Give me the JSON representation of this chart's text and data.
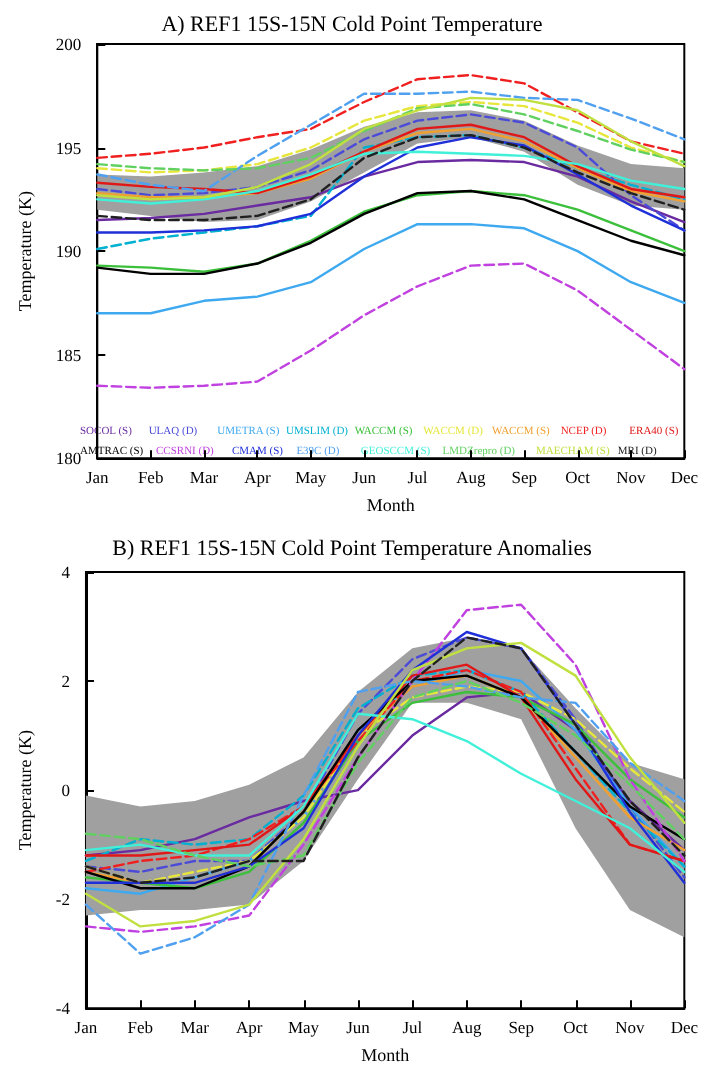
{
  "chart_data": [
    {
      "type": "line",
      "title": "A) REF1 15S-15N Cold Point Temperature",
      "xlabel": "Month",
      "ylabel": "Temperature (K)",
      "categories": [
        "Jan",
        "Feb",
        "Mar",
        "Apr",
        "May",
        "Jun",
        "Jul",
        "Aug",
        "Sep",
        "Oct",
        "Nov",
        "Dec"
      ],
      "ylim": [
        180,
        200
      ],
      "yticks": [
        180,
        185,
        190,
        195,
        200
      ],
      "grid": false,
      "legend": "bottom",
      "marker": "none",
      "series": [
        {
          "name": "SOCOL (S)",
          "color": "#6a2aa0",
          "line_style": "solid",
          "values": [
            191.5,
            191.6,
            191.8,
            192.2,
            192.6,
            193.6,
            194.3,
            194.4,
            194.3,
            193.6,
            192.4,
            191.4
          ]
        },
        {
          "name": "ULAQ (D)",
          "color": "#4b4bd8",
          "line_style": "dashed",
          "values": [
            193.0,
            192.7,
            192.8,
            193.1,
            193.9,
            195.4,
            196.3,
            196.6,
            196.2,
            195.0,
            192.7,
            191.0
          ]
        },
        {
          "name": "UMETRA (S)",
          "color": "#3fa9f0",
          "line_style": "solid",
          "values": [
            187.0,
            187.0,
            187.6,
            187.8,
            188.5,
            190.1,
            191.3,
            191.3,
            191.1,
            190.0,
            188.5,
            187.5
          ]
        },
        {
          "name": "UMSLIM (D)",
          "color": "#00b0d0",
          "line_style": "dashed",
          "values": [
            190.1,
            190.6,
            190.9,
            191.2,
            191.7,
            195.0,
            195.5,
            195.6,
            195.0,
            194.0,
            193.2,
            192.5
          ]
        },
        {
          "name": "WACCM (S)",
          "color": "#3cc03c",
          "line_style": "solid",
          "values": [
            189.3,
            189.2,
            189.0,
            189.4,
            190.5,
            191.9,
            192.7,
            192.9,
            192.7,
            192.0,
            191.0,
            190.0
          ]
        },
        {
          "name": "WACCM (D)",
          "color": "#e6e63c",
          "line_style": "dashed",
          "values": [
            194.0,
            193.8,
            193.9,
            194.2,
            195.0,
            196.3,
            197.0,
            197.2,
            197.0,
            196.2,
            195.0,
            194.3
          ]
        },
        {
          "name": "WACCM (S)",
          "color": "#f0a030",
          "line_style": "solid",
          "values": [
            192.8,
            192.6,
            192.6,
            192.8,
            193.5,
            194.8,
            195.7,
            195.9,
            195.3,
            194.0,
            192.9,
            192.4
          ]
        },
        {
          "name": "NCEP (D)",
          "color": "#f02020",
          "line_style": "dashed",
          "values": [
            194.5,
            194.7,
            195.0,
            195.5,
            195.9,
            197.2,
            198.3,
            198.5,
            198.1,
            196.7,
            195.3,
            194.7
          ]
        },
        {
          "name": "ERA40 (S)",
          "color": "#e01818",
          "line_style": "solid",
          "values": [
            193.3,
            193.1,
            193.0,
            192.8,
            193.6,
            194.8,
            195.9,
            196.1,
            195.5,
            194.1,
            193.0,
            192.6
          ],
          "lower": [
            192.0,
            191.7,
            191.4,
            191.5,
            192.4,
            193.8,
            195.2,
            195.5,
            194.8,
            193.2,
            192.2,
            192.0
          ],
          "upper": [
            193.7,
            193.6,
            193.8,
            194.1,
            194.9,
            196.0,
            196.7,
            196.8,
            196.3,
            195.1,
            194.2,
            194.0
          ]
        },
        {
          "name": "AMTRAC (S)",
          "color": "#000000",
          "line_style": "solid",
          "values": [
            189.2,
            188.9,
            188.9,
            189.4,
            190.4,
            191.8,
            192.8,
            192.9,
            192.5,
            191.5,
            190.5,
            189.8
          ]
        },
        {
          "name": "CCSRNI (D)",
          "color": "#c040e0",
          "line_style": "dashed",
          "values": [
            183.5,
            183.4,
            183.5,
            183.7,
            185.2,
            186.9,
            188.3,
            189.3,
            189.4,
            188.1,
            186.2,
            184.3
          ]
        },
        {
          "name": "CMAM (S)",
          "color": "#2030d8",
          "line_style": "solid",
          "values": [
            190.9,
            190.9,
            191.0,
            191.2,
            191.8,
            193.6,
            195.0,
            195.5,
            195.1,
            193.7,
            192.2,
            191.0
          ]
        },
        {
          "name": "E39C (D)",
          "color": "#50a0f0",
          "line_style": "dashed",
          "values": [
            193.7,
            193.2,
            192.9,
            194.6,
            196.1,
            197.6,
            197.6,
            197.7,
            197.4,
            197.3,
            196.4,
            195.4
          ]
        },
        {
          "name": "GEOSCCM (S)",
          "color": "#40f0d8",
          "line_style": "solid",
          "values": [
            192.5,
            192.3,
            192.5,
            192.9,
            193.7,
            194.7,
            194.8,
            194.7,
            194.6,
            194.2,
            193.4,
            193.0
          ]
        },
        {
          "name": "LMDZrepro (D)",
          "color": "#60d060",
          "line_style": "dashed",
          "values": [
            194.2,
            194.0,
            193.9,
            194.0,
            194.5,
            195.8,
            196.9,
            197.1,
            196.6,
            195.8,
            194.9,
            194.3
          ]
        },
        {
          "name": "MAECHAM (S)",
          "color": "#c0e040",
          "line_style": "solid",
          "values": [
            192.7,
            192.5,
            192.6,
            193.1,
            194.2,
            195.9,
            196.8,
            197.4,
            197.3,
            196.8,
            195.3,
            194.1
          ]
        },
        {
          "name": "MRI (D)",
          "color": "#202020",
          "line_style": "dashed",
          "values": [
            191.7,
            191.5,
            191.5,
            191.7,
            192.5,
            194.5,
            195.5,
            195.6,
            195.0,
            193.8,
            192.8,
            192.0
          ]
        }
      ]
    },
    {
      "type": "line",
      "title": "B) REF1 15S-15N Cold Point Temperature Anomalies",
      "xlabel": "Month",
      "ylabel": "Temperature (K)",
      "categories": [
        "Jan",
        "Feb",
        "Mar",
        "Apr",
        "May",
        "Jun",
        "Jul",
        "Aug",
        "Sep",
        "Oct",
        "Nov",
        "Dec"
      ],
      "ylim": [
        -4,
        4
      ],
      "yticks": [
        -4,
        -2,
        0,
        2,
        4
      ],
      "grid": false,
      "marker": "none",
      "series": [
        {
          "color": "#6a2aa0",
          "line_style": "solid",
          "values": [
            -1.2,
            -1.1,
            -0.9,
            -0.5,
            -0.2,
            0.0,
            1.0,
            1.7,
            1.8,
            1.1,
            -0.2,
            -1.1
          ]
        },
        {
          "color": "#4b4bd8",
          "line_style": "dashed",
          "values": [
            -1.4,
            -1.5,
            -1.3,
            -1.3,
            -0.4,
            1.4,
            2.4,
            2.8,
            2.6,
            1.3,
            -0.3,
            -1.6
          ]
        },
        {
          "color": "#3fa9f0",
          "line_style": "solid",
          "values": [
            -1.8,
            -1.9,
            -1.6,
            -1.3,
            -0.5,
            1.1,
            1.9,
            2.2,
            2.0,
            1.1,
            -0.3,
            -1.4
          ]
        },
        {
          "color": "#00b0d0",
          "line_style": "dashed",
          "values": [
            -1.3,
            -0.9,
            -1.0,
            -0.9,
            -0.1,
            1.5,
            2.1,
            2.2,
            1.8,
            0.7,
            -0.4,
            -1.4
          ]
        },
        {
          "color": "#3cc03c",
          "line_style": "solid",
          "values": [
            -1.6,
            -1.7,
            -1.8,
            -1.5,
            -0.6,
            0.9,
            1.6,
            1.8,
            1.7,
            1.2,
            0.2,
            -0.5
          ]
        },
        {
          "color": "#e6e63c",
          "line_style": "dashed",
          "values": [
            -1.4,
            -1.7,
            -1.5,
            -1.3,
            -0.5,
            1.0,
            1.7,
            1.9,
            1.8,
            1.3,
            0.4,
            -0.4
          ]
        },
        {
          "color": "#f0a030",
          "line_style": "solid",
          "values": [
            -1.5,
            -1.7,
            -1.7,
            -1.4,
            -0.4,
            1.0,
            1.9,
            2.1,
            1.7,
            0.6,
            -0.5,
            -1.1
          ]
        },
        {
          "color": "#f02020",
          "line_style": "dashed",
          "values": [
            -1.5,
            -1.3,
            -1.2,
            -0.9,
            -0.3,
            0.9,
            2.0,
            2.2,
            1.8,
            0.4,
            -1.0,
            -1.3
          ]
        },
        {
          "color": "#e01818",
          "line_style": "solid",
          "values": [
            -1.2,
            -1.2,
            -1.1,
            -1.0,
            -0.3,
            1.0,
            2.1,
            2.3,
            1.7,
            0.2,
            -1.0,
            -1.3
          ],
          "lower": [
            -2.3,
            -2.2,
            -2.2,
            -2.1,
            -1.3,
            0.2,
            1.6,
            1.6,
            1.3,
            -0.7,
            -2.2,
            -2.7
          ],
          "upper": [
            -0.1,
            -0.3,
            -0.2,
            0.1,
            0.6,
            1.8,
            2.6,
            2.8,
            2.6,
            1.5,
            0.5,
            0.2
          ]
        },
        {
          "color": "#000000",
          "line_style": "solid",
          "values": [
            -1.5,
            -1.8,
            -1.8,
            -1.4,
            -0.4,
            1.1,
            2.0,
            2.1,
            1.7,
            0.7,
            -0.3,
            -0.9
          ]
        },
        {
          "color": "#c040e0",
          "line_style": "dashed",
          "values": [
            -2.5,
            -2.6,
            -2.5,
            -2.3,
            -1.0,
            0.6,
            2.0,
            3.3,
            3.4,
            2.3,
            0.2,
            -1.3
          ]
        },
        {
          "color": "#2030d8",
          "line_style": "solid",
          "values": [
            -1.7,
            -1.7,
            -1.7,
            -1.4,
            -0.7,
            1.0,
            2.2,
            2.9,
            2.6,
            1.2,
            -0.4,
            -1.7
          ]
        },
        {
          "color": "#50a0f0",
          "line_style": "dashed",
          "values": [
            -2.1,
            -3.0,
            -2.7,
            -2.1,
            -0.1,
            1.8,
            2.0,
            1.9,
            1.7,
            1.6,
            0.5,
            -0.2
          ]
        },
        {
          "color": "#40f0d8",
          "line_style": "solid",
          "values": [
            -1.1,
            -1.0,
            -1.2,
            -1.2,
            -0.3,
            1.4,
            1.3,
            0.9,
            0.3,
            -0.2,
            -0.7,
            -1.5
          ]
        },
        {
          "color": "#60d060",
          "line_style": "dashed",
          "values": [
            -0.8,
            -0.9,
            -1.2,
            -1.4,
            -1.2,
            0.5,
            1.7,
            2.0,
            1.6,
            1.0,
            0.1,
            -0.9
          ]
        },
        {
          "color": "#c0e040",
          "line_style": "solid",
          "values": [
            -1.9,
            -2.5,
            -2.4,
            -2.1,
            -0.9,
            0.8,
            2.2,
            2.6,
            2.7,
            2.1,
            0.6,
            -0.6
          ]
        },
        {
          "color": "#202020",
          "line_style": "dashed",
          "values": [
            -1.4,
            -1.7,
            -1.6,
            -1.3,
            -1.3,
            0.6,
            2.0,
            2.8,
            2.6,
            1.2,
            -0.2,
            -1.2
          ]
        }
      ]
    }
  ]
}
